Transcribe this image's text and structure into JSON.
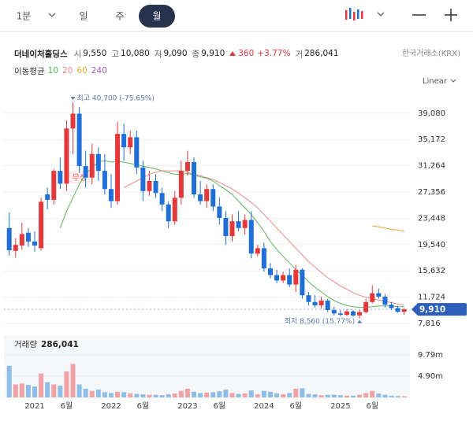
{
  "toolbar": {
    "intervals": [
      "1분",
      "일",
      "주",
      "월"
    ],
    "selected": "월"
  },
  "quote": {
    "name": "더네이처홀딩스",
    "fields": [
      {
        "label": "시",
        "value": "9,550"
      },
      {
        "label": "고",
        "value": "10,080"
      },
      {
        "label": "저",
        "value": "9,090"
      },
      {
        "label": "종",
        "value": "9,910"
      }
    ],
    "change": "360",
    "change_pct": "+3.77%",
    "volume_label": "거",
    "volume": "286,041",
    "exchange": "한국거래소(KRX)"
  },
  "ma_label": "이동평균",
  "scale": "Linear",
  "chart_data": [
    {
      "type": "candlestick",
      "categories": [
        null,
        null,
        null,
        null,
        "2021",
        null,
        null,
        null,
        null,
        "6월",
        null,
        null,
        null,
        null,
        null,
        null,
        "2022",
        null,
        null,
        null,
        null,
        "6월",
        null,
        null,
        null,
        null,
        null,
        null,
        "2023",
        null,
        null,
        null,
        null,
        "6월",
        null,
        null,
        null,
        null,
        null,
        null,
        "2024",
        null,
        null,
        null,
        null,
        "6월",
        null,
        null,
        null,
        null,
        null,
        null,
        "2025",
        null,
        null,
        null,
        null,
        "6월",
        null,
        null,
        null,
        null,
        null
      ],
      "open": [
        22000,
        18600,
        19400,
        21300,
        20000,
        19000,
        27000,
        26200,
        30500,
        28600,
        36800,
        39000,
        31200,
        29500,
        33000,
        30500,
        27800,
        26000,
        36000,
        34000,
        35500,
        31000,
        27500,
        29000,
        27200,
        25500,
        23000,
        26500,
        30500,
        31800,
        27000,
        26000,
        27800,
        25200,
        23500,
        20800,
        23000,
        22000,
        23200,
        18200,
        19000,
        16000,
        15000,
        14200,
        15000,
        13600,
        15800,
        12000,
        11000,
        10500,
        11200,
        9800,
        9300,
        9100,
        9600,
        9000,
        9500,
        11000,
        12300,
        11800,
        10600,
        10100,
        9550
      ],
      "high": [
        24300,
        20500,
        22800,
        22000,
        21500,
        26500,
        28000,
        30800,
        32500,
        38000,
        40700,
        40000,
        33500,
        34500,
        34000,
        33000,
        30000,
        37800,
        37500,
        36500,
        36500,
        32000,
        30500,
        30000,
        28000,
        26000,
        27500,
        32000,
        33500,
        32500,
        29000,
        28500,
        28500,
        26500,
        24500,
        24000,
        24500,
        24000,
        24500,
        19500,
        19800,
        16800,
        15800,
        15500,
        16000,
        16500,
        16000,
        12500,
        12000,
        11800,
        11500,
        10300,
        9800,
        9900,
        9800,
        9800,
        11500,
        13500,
        13000,
        12200,
        11000,
        10400,
        10080
      ],
      "low": [
        17900,
        17600,
        18800,
        19200,
        18500,
        18600,
        24800,
        25500,
        27800,
        27500,
        33000,
        30200,
        28000,
        28500,
        29000,
        27000,
        25000,
        25500,
        32000,
        33000,
        30000,
        26000,
        26800,
        26500,
        24500,
        22000,
        22500,
        25500,
        29800,
        26500,
        25500,
        25000,
        24500,
        22500,
        19500,
        20000,
        21500,
        21000,
        17500,
        17800,
        15500,
        14500,
        13800,
        13800,
        13200,
        12500,
        11500,
        10500,
        10200,
        10000,
        9500,
        9000,
        8900,
        8900,
        8800,
        8560,
        9300,
        10800,
        11500,
        10200,
        9800,
        9400,
        9090
      ],
      "close": [
        18700,
        19500,
        21100,
        20000,
        19400,
        25900,
        26200,
        30500,
        28600,
        36800,
        39000,
        31200,
        29500,
        33000,
        30500,
        27800,
        26000,
        36000,
        34000,
        35500,
        31000,
        27500,
        29000,
        27200,
        25500,
        23000,
        26500,
        30500,
        31800,
        27000,
        26000,
        27800,
        25200,
        23500,
        20800,
        23000,
        22000,
        23200,
        18200,
        19000,
        16000,
        15000,
        14200,
        15000,
        13600,
        15800,
        12000,
        11000,
        10500,
        11200,
        9800,
        9300,
        9100,
        9600,
        9000,
        9500,
        11000,
        12300,
        11800,
        10600,
        10100,
        9550,
        9910
      ],
      "up_color": "#e5383b",
      "down_color": "#1f6fd6",
      "series": [
        {
          "name": "10",
          "color": "#5cb85c",
          "values": [
            null,
            null,
            null,
            null,
            null,
            null,
            null,
            null,
            22000,
            24500,
            26500,
            28500,
            30000,
            31000,
            31800,
            32000,
            31800,
            31900,
            31800,
            31600,
            31400,
            31200,
            31000,
            30800,
            30500,
            30200,
            30000,
            30000,
            30100,
            29900,
            29600,
            29400,
            29000,
            28300,
            27700,
            27000,
            26000,
            25000,
            24000,
            22800,
            21500,
            20000,
            18800,
            17800,
            16800,
            15800,
            15000,
            14000,
            13200,
            12500,
            11800,
            11200,
            10800,
            10500,
            10300,
            10200,
            10200,
            10300,
            10400,
            10400,
            10400,
            10300,
            10300
          ]
        },
        {
          "name": "20",
          "color": "#ec8a8a",
          "values": [
            null,
            null,
            null,
            null,
            null,
            null,
            null,
            null,
            null,
            null,
            null,
            null,
            null,
            null,
            null,
            null,
            null,
            null,
            28000,
            28500,
            29000,
            29500,
            30000,
            30300,
            30500,
            30500,
            30500,
            30500,
            30300,
            30000,
            29800,
            29500,
            29200,
            28800,
            28300,
            27800,
            27200,
            26500,
            25800,
            25000,
            24000,
            23000,
            22000,
            21000,
            20000,
            19000,
            18000,
            17000,
            16200,
            15400,
            14600,
            14000,
            13400,
            12900,
            12400,
            12000,
            11700,
            11500,
            11300,
            11100,
            10900,
            10700,
            10500
          ]
        },
        {
          "name": "60",
          "color": "#f0a53c",
          "values": [
            null,
            null,
            null,
            null,
            null,
            null,
            null,
            null,
            null,
            null,
            null,
            null,
            null,
            null,
            null,
            null,
            null,
            null,
            null,
            null,
            null,
            null,
            null,
            null,
            null,
            null,
            null,
            null,
            null,
            null,
            null,
            null,
            null,
            null,
            null,
            null,
            null,
            null,
            null,
            null,
            null,
            null,
            null,
            null,
            null,
            null,
            null,
            null,
            null,
            null,
            null,
            null,
            null,
            null,
            null,
            null,
            null,
            22300,
            22200,
            22000,
            21800,
            21700,
            21500
          ]
        },
        {
          "name": "240",
          "color": "#9b59d0",
          "values": [
            null,
            null,
            null,
            null,
            null,
            null,
            null,
            null,
            null,
            null,
            null,
            null,
            null,
            null,
            null,
            null,
            null,
            null,
            null,
            null,
            null,
            null,
            null,
            null,
            null,
            null,
            null,
            null,
            null,
            null,
            null,
            null,
            null,
            null,
            null,
            null,
            null,
            null,
            null,
            null,
            null,
            null,
            null,
            null,
            null,
            null,
            null,
            null,
            null,
            null,
            null,
            null,
            null,
            null,
            null,
            null,
            null,
            null,
            null,
            null,
            null,
            null,
            null
          ]
        }
      ],
      "ylim": [
        6763,
        42099
      ],
      "yticks": [
        {
          "value": 39080,
          "label": "39,080"
        },
        {
          "value": 35172,
          "label": "35,172"
        },
        {
          "value": 31264,
          "label": "31,264"
        },
        {
          "value": 27356,
          "label": "27,356"
        },
        {
          "value": 23448,
          "label": "23,448"
        },
        {
          "value": 19540,
          "label": "19,540"
        },
        {
          "value": 15632,
          "label": "15,632"
        },
        {
          "value": 11724,
          "label": "11,724"
        },
        {
          "value": 7816,
          "label": "7,816"
        }
      ],
      "grid": true,
      "high_note": {
        "label": "최고 40,700 (-75.65%)",
        "value": 40700
      },
      "low_note": {
        "label": "최저 8,560 (15.77%)",
        "value": 8560
      },
      "last_price": {
        "value": 9910,
        "label": "9,910"
      },
      "events": [
        "무상"
      ]
    },
    {
      "type": "bar",
      "title": "거래량",
      "values": [
        7300000,
        3000000,
        3200000,
        2900000,
        2500000,
        5500000,
        3500000,
        3000000,
        2700000,
        6000000,
        7700000,
        3000000,
        2000000,
        1500000,
        1800000,
        1200000,
        1000000,
        1300000,
        1200000,
        900000,
        800000,
        700000,
        600000,
        600000,
        500000,
        700000,
        900000,
        1500000,
        2000000,
        1300000,
        1000000,
        1100000,
        1200000,
        1400000,
        1800000,
        1000000,
        800000,
        900000,
        1600000,
        700000,
        1500000,
        1300000,
        900000,
        700000,
        1000000,
        2000000,
        2100000,
        800000,
        700000,
        500000,
        600000,
        600000,
        500000,
        400000,
        400000,
        600000,
        1000000,
        1500000,
        900000,
        600000,
        400000,
        300000,
        286041
      ],
      "latest_label": "286,041",
      "up_color": "#f2a1a4",
      "down_color": "#8ebde9",
      "ylim": [
        0,
        13970000
      ],
      "yticks": [
        {
          "value": 4900000,
          "label": "4.90m"
        },
        {
          "value": 9790000,
          "label": "9.79m"
        }
      ]
    }
  ]
}
